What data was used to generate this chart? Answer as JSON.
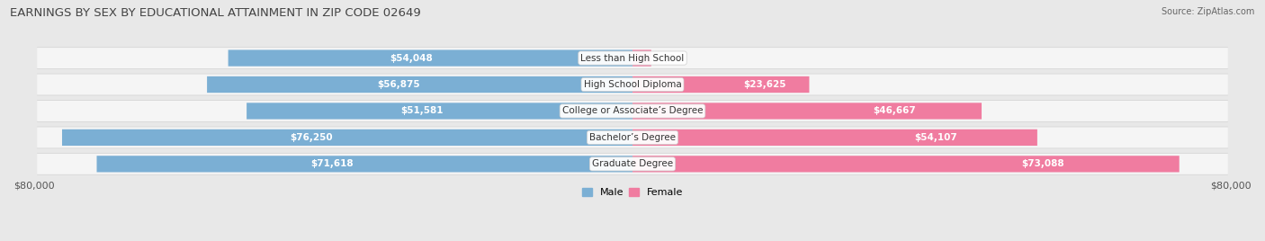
{
  "title": "EARNINGS BY SEX BY EDUCATIONAL ATTAINMENT IN ZIP CODE 02649",
  "source": "Source: ZipAtlas.com",
  "categories": [
    "Less than High School",
    "High School Diploma",
    "College or Associate’s Degree",
    "Bachelor’s Degree",
    "Graduate Degree"
  ],
  "male_values": [
    54048,
    56875,
    51581,
    76250,
    71618
  ],
  "female_values": [
    0,
    23625,
    46667,
    54107,
    73088
  ],
  "male_color": "#7bafd4",
  "female_color": "#f07ca0",
  "male_label": "Male",
  "female_label": "Female",
  "x_max": 80000,
  "bar_height": 0.62,
  "background_color": "#e8e8e8",
  "row_bg_color": "#d8d8d8",
  "row_inner_color": "#f5f5f5",
  "title_fontsize": 9.5,
  "label_fontsize": 7.5,
  "tick_fontsize": 8,
  "source_fontsize": 7
}
